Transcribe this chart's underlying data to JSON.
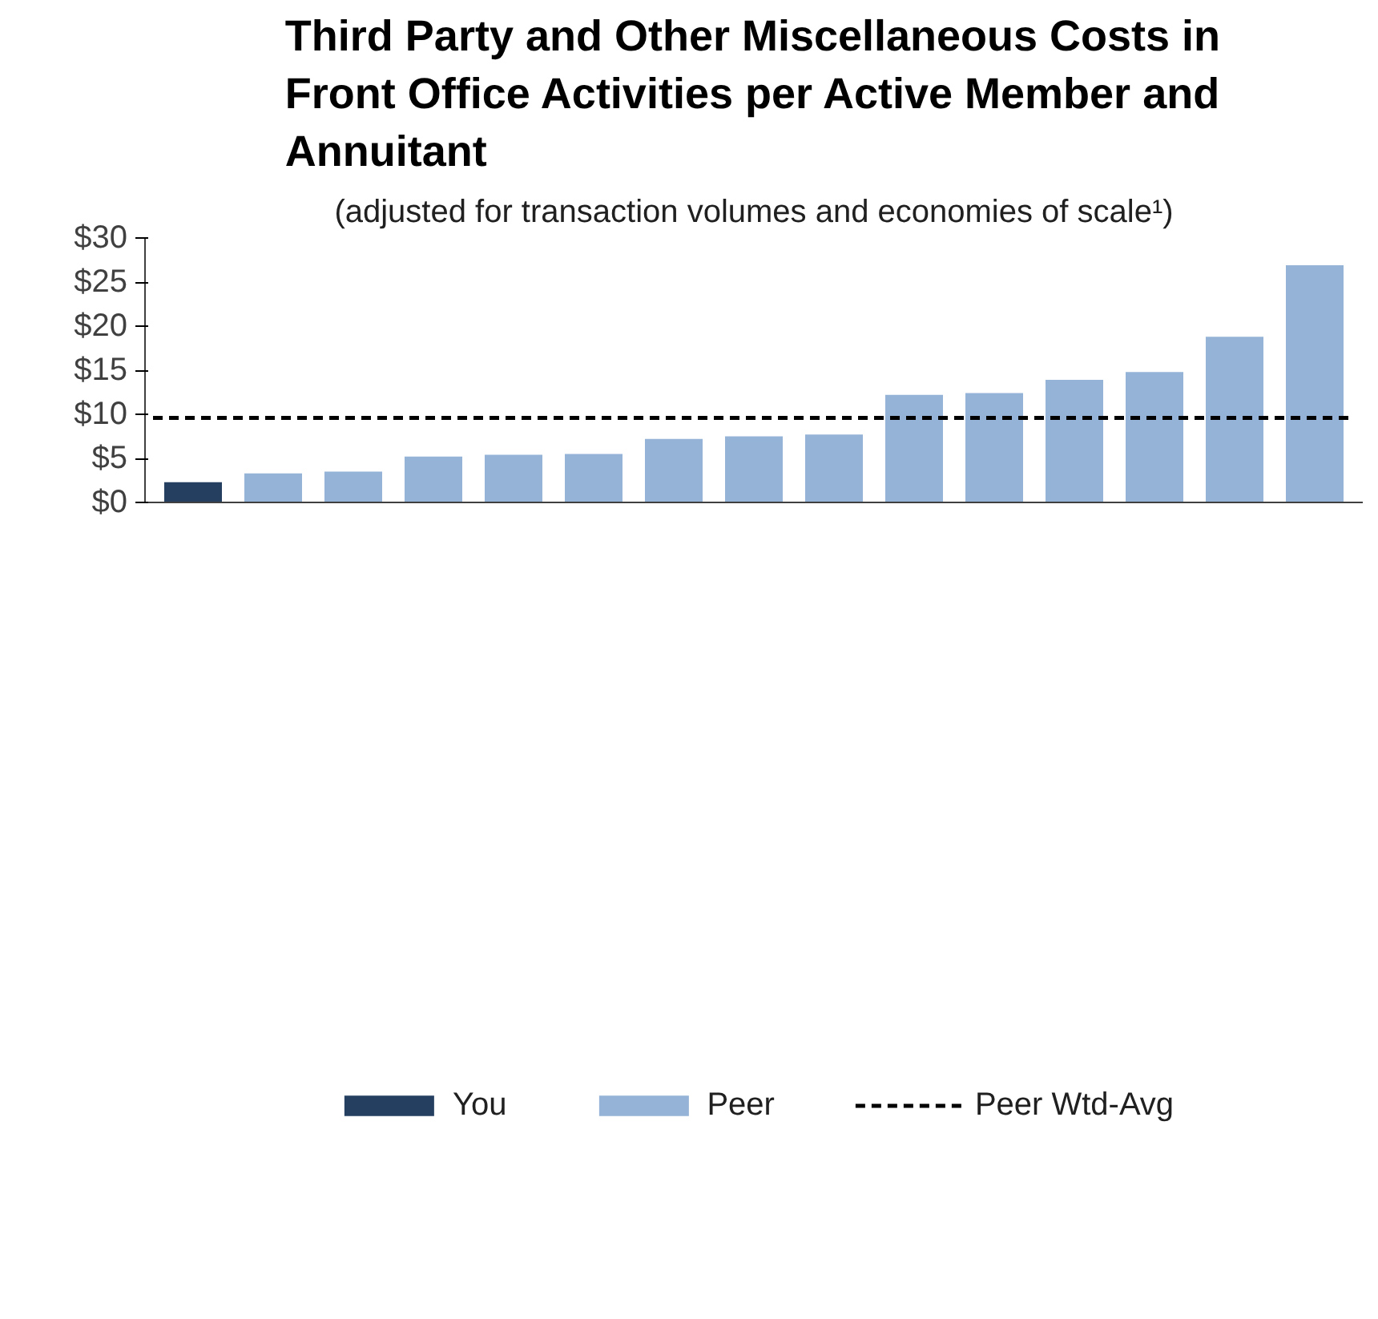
{
  "chart_data": {
    "type": "bar",
    "title": "Third Party and Other Miscellaneous Costs in Front Office Activities per Active Member and Annuitant",
    "subtitle": "(adjusted for transaction volumes and economies of scale¹)",
    "categories": [
      null,
      null,
      null,
      null,
      null,
      null,
      null,
      null,
      null,
      null,
      null,
      null,
      null,
      null,
      null
    ],
    "series": [
      {
        "name": "You",
        "color": "#243f60",
        "values": [
          2.3,
          null,
          null,
          null,
          null,
          null,
          null,
          null,
          null,
          null,
          null,
          null,
          null,
          null,
          null
        ]
      },
      {
        "name": "Peer",
        "color": "#95b3d7",
        "values": [
          null,
          3.3,
          3.5,
          5.2,
          5.4,
          5.5,
          7.2,
          7.5,
          7.7,
          12.2,
          12.4,
          13.9,
          14.8,
          18.8,
          26.9
        ]
      }
    ],
    "ylim": [
      0,
      30
    ],
    "yticks": [
      {
        "value": 0,
        "label": "$0"
      },
      {
        "value": 5,
        "label": "$5"
      },
      {
        "value": 10,
        "label": "$10"
      },
      {
        "value": 15,
        "label": "$15"
      },
      {
        "value": 20,
        "label": "$20"
      },
      {
        "value": 25,
        "label": "$25"
      },
      {
        "value": 30,
        "label": "$30"
      }
    ],
    "ref_lines": [
      {
        "axis": "y",
        "value": 9.6,
        "label": "Peer Wtd-Avg",
        "color": "#000000",
        "line_style": "dashed"
      }
    ],
    "grid": false,
    "legend": "bottom"
  }
}
